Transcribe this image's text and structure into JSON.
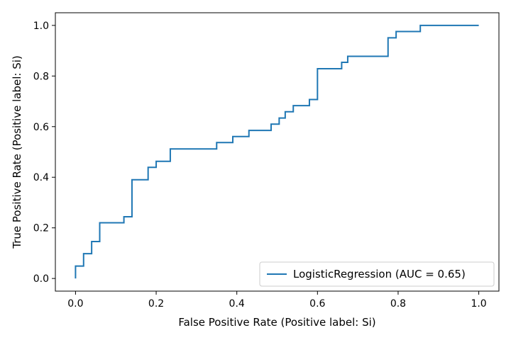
{
  "chart_data": {
    "type": "line",
    "title": "",
    "xlabel": "False Positive Rate (Positive label: Si)",
    "ylabel": "True Positive Rate (Positive label: Si)",
    "xlim": [
      -0.05,
      1.05
    ],
    "ylim": [
      -0.05,
      1.05
    ],
    "xticks": [
      0.0,
      0.2,
      0.4,
      0.6,
      0.8,
      1.0
    ],
    "yticks": [
      0.0,
      0.2,
      0.4,
      0.6,
      0.8,
      1.0
    ],
    "xtick_labels": [
      "0.0",
      "0.2",
      "0.4",
      "0.6",
      "0.8",
      "1.0"
    ],
    "ytick_labels": [
      "0.0",
      "0.2",
      "0.4",
      "0.6",
      "0.8",
      "1.0"
    ],
    "grid": false,
    "legend_position": "bottom-right",
    "series": [
      {
        "name": "LogisticRegression (AUC = 0.65)",
        "color": "#1f77b4",
        "x": [
          0.0,
          0.0,
          0.02,
          0.02,
          0.04,
          0.04,
          0.06,
          0.06,
          0.12,
          0.12,
          0.14,
          0.14,
          0.18,
          0.18,
          0.2,
          0.2,
          0.235,
          0.235,
          0.35,
          0.35,
          0.39,
          0.39,
          0.43,
          0.43,
          0.485,
          0.485,
          0.505,
          0.505,
          0.52,
          0.52,
          0.54,
          0.54,
          0.58,
          0.58,
          0.6,
          0.6,
          0.66,
          0.66,
          0.675,
          0.675,
          0.775,
          0.775,
          0.795,
          0.795,
          0.855,
          0.855,
          1.0
        ],
        "y": [
          0.0,
          0.049,
          0.049,
          0.098,
          0.098,
          0.146,
          0.146,
          0.22,
          0.22,
          0.244,
          0.244,
          0.39,
          0.39,
          0.439,
          0.439,
          0.463,
          0.463,
          0.512,
          0.512,
          0.537,
          0.537,
          0.561,
          0.561,
          0.585,
          0.585,
          0.61,
          0.61,
          0.634,
          0.634,
          0.659,
          0.659,
          0.683,
          0.683,
          0.707,
          0.707,
          0.829,
          0.829,
          0.854,
          0.854,
          0.878,
          0.878,
          0.951,
          0.951,
          0.976,
          0.976,
          1.0,
          1.0
        ]
      }
    ]
  }
}
